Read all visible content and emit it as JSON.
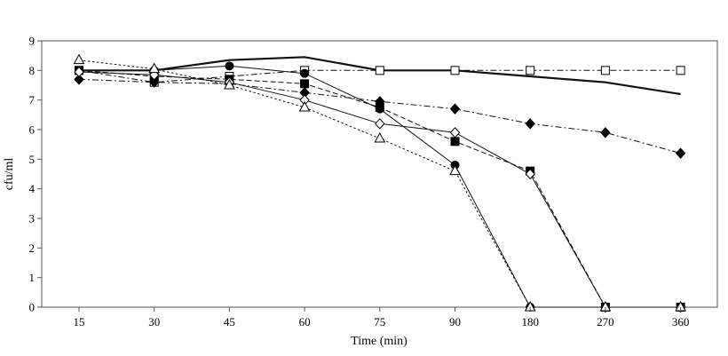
{
  "chart_data": {
    "type": "line",
    "title": "",
    "xlabel": "Time (min)",
    "ylabel": "cfu/ml",
    "categories": [
      "15",
      "30",
      "45",
      "60",
      "75",
      "90",
      "180",
      "270",
      "360"
    ],
    "ylim": [
      0,
      9
    ],
    "yticks": [
      "0",
      "1",
      "2",
      "3",
      "4",
      "5",
      "6",
      "7",
      "8",
      "9"
    ],
    "grid": false,
    "legend": "none",
    "series": [
      {
        "name": "solid thick (no markers)",
        "marker": "none",
        "dash": "solid",
        "width": 2.2,
        "values": [
          8.0,
          8.0,
          8.35,
          8.45,
          8.0,
          8.0,
          7.8,
          7.6,
          7.2
        ]
      },
      {
        "name": "open squares",
        "marker": "open-square",
        "dash": "dashdot",
        "values": [
          8.0,
          7.6,
          7.8,
          8.0,
          8.0,
          8.0,
          8.0,
          8.0,
          8.0
        ]
      },
      {
        "name": "filled diamonds",
        "marker": "filled-diamond",
        "dash": "dashdot",
        "values": [
          7.7,
          7.6,
          7.55,
          7.25,
          6.95,
          6.7,
          6.2,
          5.9,
          5.2
        ]
      },
      {
        "name": "filled squares",
        "marker": "filled-square",
        "dash": "dashed",
        "values": [
          8.0,
          7.8,
          7.7,
          7.55,
          6.75,
          5.6,
          4.6,
          0.0,
          0.0
        ]
      },
      {
        "name": "filled circles",
        "marker": "filled-circle",
        "dash": "solid",
        "width": 1.0,
        "values": [
          8.0,
          8.0,
          8.15,
          7.9,
          6.7,
          4.8,
          0.0,
          0.0,
          0.0
        ]
      },
      {
        "name": "open diamonds",
        "marker": "open-diamond",
        "dash": "solid",
        "width": 1.0,
        "values": [
          7.95,
          7.85,
          7.6,
          7.0,
          6.2,
          5.9,
          4.5,
          0.0,
          0.0
        ]
      },
      {
        "name": "open triangles",
        "marker": "open-triangle",
        "dash": "dotted",
        "values": [
          8.35,
          8.05,
          7.5,
          6.75,
          5.7,
          4.6,
          0.0,
          0.0,
          0.0
        ]
      }
    ]
  }
}
